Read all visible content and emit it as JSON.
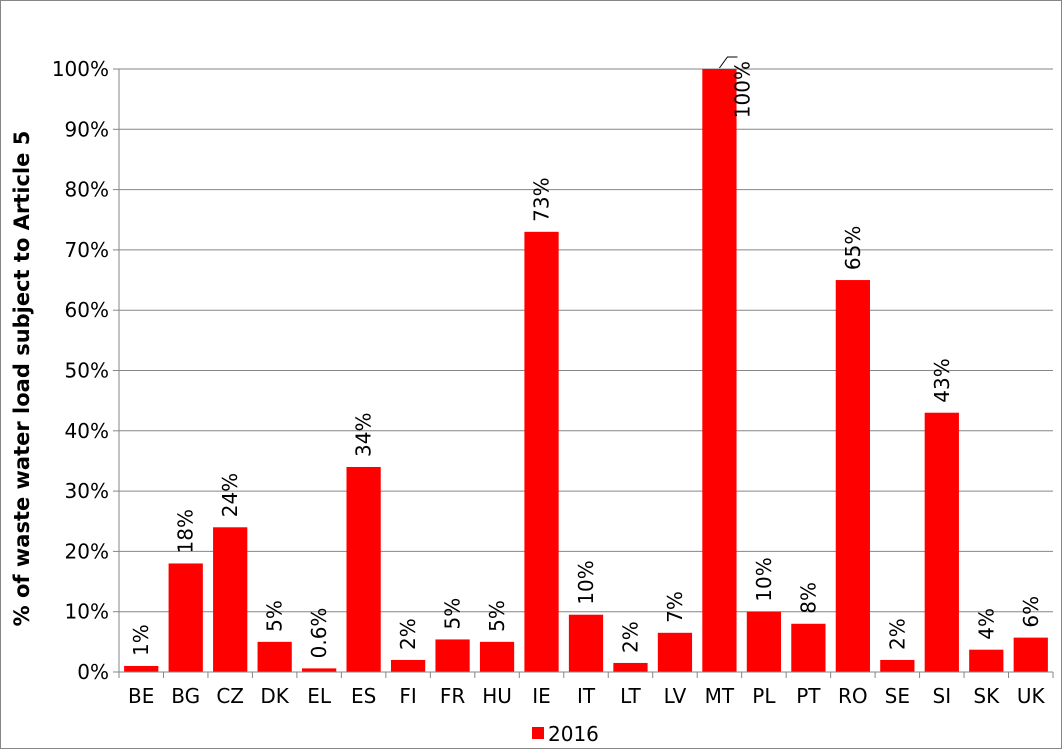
{
  "chart_data": {
    "type": "bar",
    "title": "",
    "xlabel": "",
    "ylabel": "% of waste water load subject to Article 5",
    "ylim": [
      0,
      100
    ],
    "yticks": [
      "0%",
      "10%",
      "20%",
      "30%",
      "40%",
      "50%",
      "60%",
      "70%",
      "80%",
      "90%",
      "100%"
    ],
    "ytick_values": [
      0,
      10,
      20,
      30,
      40,
      50,
      60,
      70,
      80,
      90,
      100
    ],
    "grid": true,
    "legend_position": "bottom",
    "categories": [
      "BE",
      "BG",
      "CZ",
      "DK",
      "EL",
      "ES",
      "FI",
      "FR",
      "HU",
      "IE",
      "IT",
      "LT",
      "LV",
      "MT",
      "PL",
      "PT",
      "RO",
      "SE",
      "SI",
      "SK",
      "UK"
    ],
    "series": [
      {
        "name": "2016",
        "color": "#ff0000",
        "values": [
          1,
          18,
          24,
          5,
          0.6,
          34,
          2,
          5.4,
          5,
          73,
          9.5,
          1.5,
          6.5,
          100,
          10,
          8,
          65,
          2,
          43,
          3.7,
          5.7
        ],
        "data_labels": [
          "1%",
          "18%",
          "24%",
          "5%",
          "0.6%",
          "34%",
          "2%",
          "5%",
          "5%",
          "73%",
          "10%",
          "2%",
          "7%",
          "100%",
          "10%",
          "8%",
          "65%",
          "2%",
          "43%",
          "4%",
          "6%"
        ]
      }
    ]
  }
}
